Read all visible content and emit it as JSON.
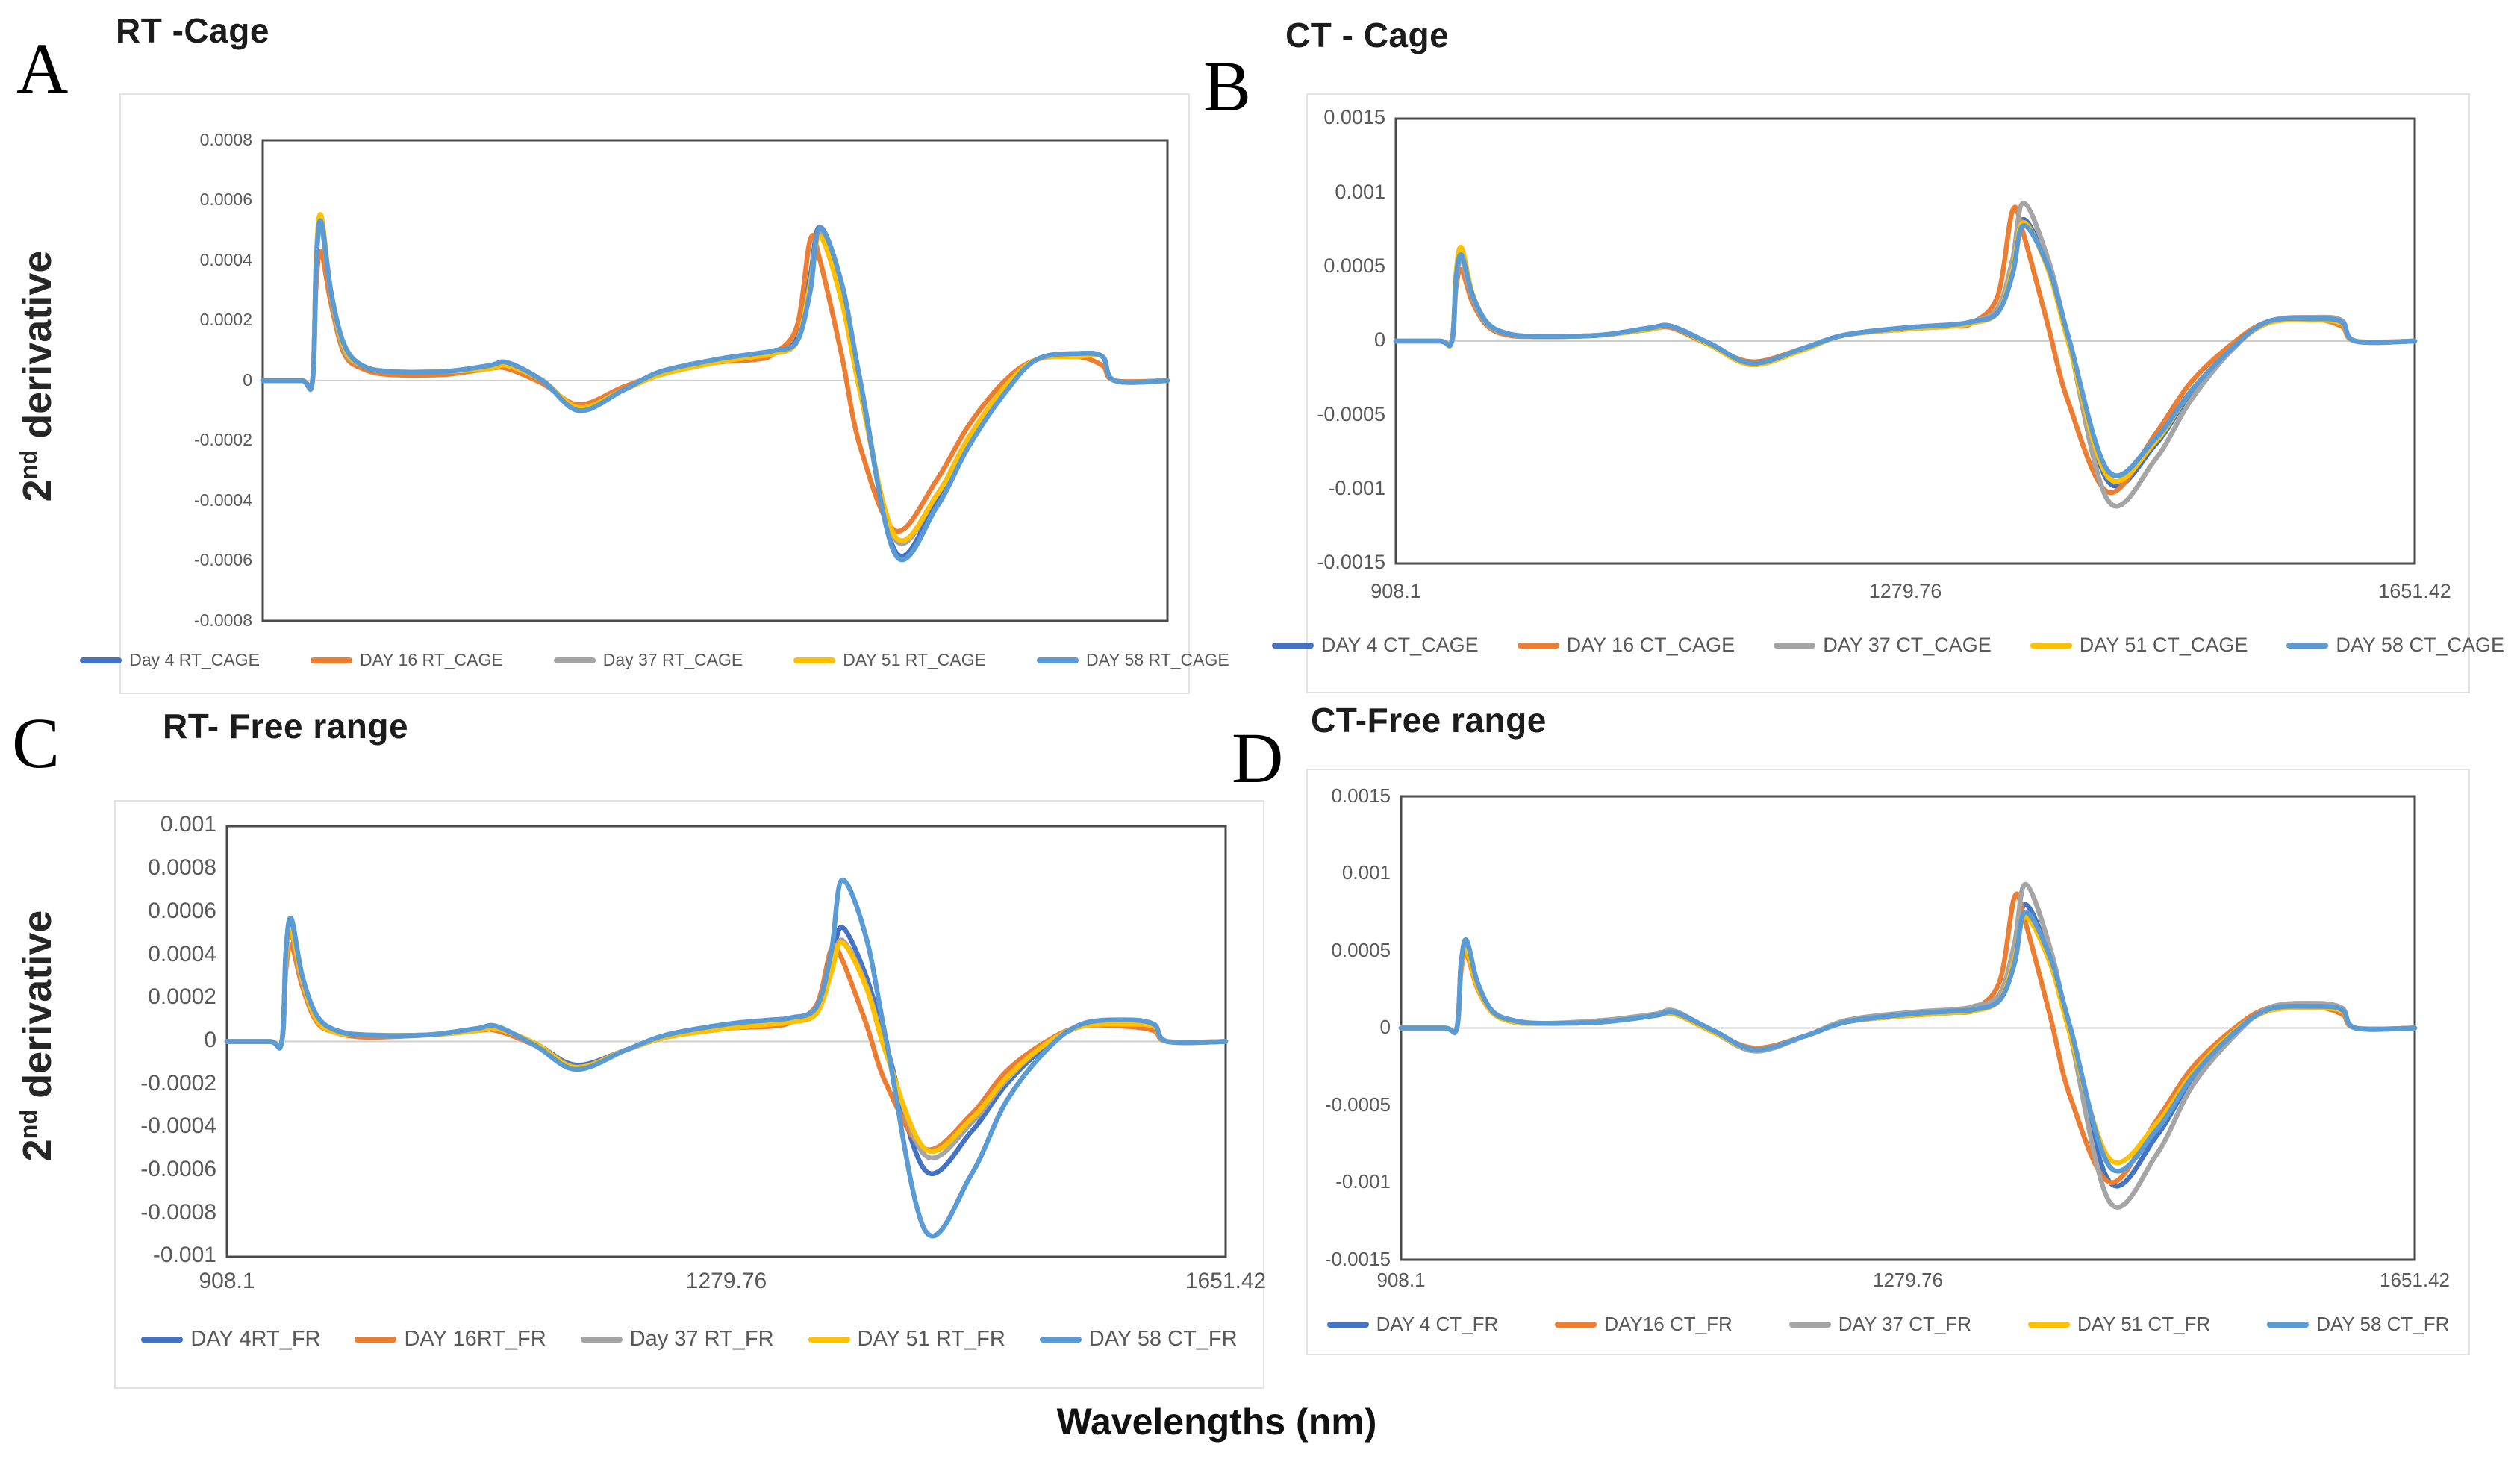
{
  "page": {
    "x_axis_title": "Wavelengths (nm)",
    "y_axis_title_base": "2",
    "y_axis_title_sup": "nd",
    "y_axis_title_rest": " derivative"
  },
  "colors": {
    "series_palette": [
      "#4472C4",
      "#ED7D31",
      "#A5A5A5",
      "#FFC000",
      "#5B9BD5"
    ],
    "axis_text": "#595959",
    "plot_border": "#4a4a4a",
    "zero_line": "#cfcfcf",
    "card_border": "#e2e2e2"
  },
  "wavelengths_nm": [
    908.1,
    940,
    949,
    952,
    956,
    964,
    975,
    990,
    1012,
    1057,
    1094,
    1109,
    1138,
    1168,
    1205,
    1235,
    1280,
    1313,
    1328,
    1347,
    1358,
    1366,
    1384,
    1399,
    1428,
    1462,
    1488,
    1518,
    1544,
    1577,
    1598,
    1608,
    1651.42
  ],
  "chart_data": [
    {
      "letter": "A",
      "title": "RT -Cage",
      "type": "line",
      "xlabel": "",
      "ylabel": "2nd derivative",
      "x_range": [
        908.1,
        1651.42
      ],
      "y_range": [
        -0.0008,
        0.0008
      ],
      "y_ticks": [
        "0.0008",
        "0.0006",
        "0.0004",
        "0.0002",
        "0",
        "-0.0002",
        "-0.0004",
        "-0.0006",
        "-0.0008"
      ],
      "x_tick_labels": [],
      "legend_position": "bottom",
      "series": [
        {
          "name": "Day 4 RT_CAGE",
          "color": "#4472C4",
          "y": [
            0,
            0,
            0,
            0.0004,
            0.00054,
            0.0003,
            0.00011,
            5e-05,
            3e-05,
            3e-05,
            4e-05,
            5e-05,
            0.0,
            -9e-05,
            -3e-05,
            2e-05,
            6e-05,
            8e-05,
            9e-05,
            0.00014,
            0.00035,
            0.00051,
            0.0003,
            0.0,
            -0.00057,
            -0.0004,
            -0.0002,
            -3e-05,
            7e-05,
            9e-05,
            8e-05,
            0,
            0
          ]
        },
        {
          "name": "DAY 16 RT_CAGE",
          "color": "#ED7D31",
          "y": [
            0,
            0,
            0,
            0.00032,
            0.00043,
            0.00026,
            9e-05,
            4e-05,
            2e-05,
            2e-05,
            4e-05,
            4e-05,
            -1e-05,
            -8e-05,
            -2e-05,
            2e-05,
            6e-05,
            7e-05,
            9e-05,
            0.00018,
            0.00047,
            0.0004,
            8e-05,
            -0.00022,
            -0.0005,
            -0.00033,
            -0.00015,
            0.0,
            7e-05,
            8e-05,
            5e-05,
            0,
            0
          ]
        },
        {
          "name": "Day 37 RT_CAGE",
          "color": "#A5A5A5",
          "y": [
            0,
            0,
            0,
            0.00038,
            0.00052,
            0.00029,
            0.0001,
            5e-05,
            3e-05,
            3e-05,
            4e-05,
            5e-05,
            0.0,
            -9e-05,
            -3e-05,
            2e-05,
            6e-05,
            8e-05,
            9e-05,
            0.00013,
            0.00033,
            0.00049,
            0.00027,
            -3e-05,
            -0.00053,
            -0.00038,
            -0.00019,
            -2e-05,
            7e-05,
            9e-05,
            8e-05,
            0,
            0
          ]
        },
        {
          "name": "DAY 51 RT_CAGE",
          "color": "#FFC000",
          "y": [
            0,
            0,
            0,
            0.00041,
            0.00055,
            0.0003,
            0.00011,
            5e-05,
            3e-05,
            3e-05,
            4e-05,
            5e-05,
            0.0,
            -9e-05,
            -3e-05,
            2e-05,
            6e-05,
            8e-05,
            9e-05,
            0.00013,
            0.00032,
            0.00048,
            0.00026,
            -4e-05,
            -0.00052,
            -0.00038,
            -0.00019,
            -2e-05,
            7e-05,
            8e-05,
            8e-05,
            0,
            0
          ]
        },
        {
          "name": "DAY 58 RT_CAGE",
          "color": "#5B9BD5",
          "y": [
            0,
            0,
            0,
            0.00039,
            0.00053,
            0.0003,
            0.00012,
            5e-05,
            3e-05,
            3e-05,
            5e-05,
            6e-05,
            0.0,
            -0.0001,
            -3e-05,
            3e-05,
            7e-05,
            9e-05,
            0.0001,
            0.00013,
            0.0003,
            0.00051,
            0.00032,
            0.0,
            -0.00058,
            -0.00042,
            -0.00022,
            -4e-05,
            7e-05,
            9e-05,
            8e-05,
            0,
            0
          ]
        }
      ]
    },
    {
      "letter": "B",
      "title": "CT - Cage",
      "type": "line",
      "xlabel": "",
      "ylabel": "",
      "x_range": [
        908.1,
        1651.42
      ],
      "y_range": [
        -0.0015,
        0.0015
      ],
      "y_ticks": [
        "0.0015",
        "0.001",
        "0.0005",
        "0",
        "-0.0005",
        "-0.001",
        "-0.0015"
      ],
      "x_tick_labels": [
        "908.1",
        "1279.76",
        "1651.42"
      ],
      "legend_position": "bottom",
      "series": [
        {
          "name": "DAY 4 CT_CAGE",
          "color": "#4472C4",
          "y": [
            0,
            0,
            0,
            0.00043,
            0.00058,
            0.0003,
            0.00012,
            5e-05,
            3e-05,
            4e-05,
            8e-05,
            0.0001,
            -2e-05,
            -0.00015,
            -6e-05,
            4e-05,
            8e-05,
            0.0001,
            0.00012,
            0.0002,
            0.0005,
            0.00082,
            0.0005,
            0.0,
            -0.00095,
            -0.0007,
            -0.00035,
            -5e-05,
            0.00012,
            0.00015,
            0.00013,
            0,
            0
          ]
        },
        {
          "name": "DAY 16 CT_CAGE",
          "color": "#ED7D31",
          "y": [
            0,
            0,
            0,
            0.00036,
            0.00048,
            0.00026,
            0.0001,
            4e-05,
            3e-05,
            4e-05,
            8e-05,
            9e-05,
            -3e-05,
            -0.00014,
            -5e-05,
            4e-05,
            8e-05,
            0.0001,
            0.00012,
            0.0003,
            0.00088,
            0.00072,
            0.0001,
            -0.00042,
            -0.00102,
            -0.00063,
            -0.00028,
            -2e-05,
            0.00013,
            0.00015,
            0.0001,
            0,
            0
          ]
        },
        {
          "name": "DAY 37 CT_CAGE",
          "color": "#A5A5A5",
          "y": [
            0,
            0,
            0,
            0.0004,
            0.00055,
            0.00029,
            0.00011,
            5e-05,
            3e-05,
            4e-05,
            8e-05,
            0.0001,
            -3e-05,
            -0.00016,
            -6e-05,
            4e-05,
            9e-05,
            0.00011,
            0.00013,
            0.00022,
            0.00055,
            0.00093,
            0.00055,
            0.0,
            -0.00108,
            -0.0008,
            -0.0004,
            -6e-05,
            0.00013,
            0.00016,
            0.00014,
            0,
            0
          ]
        },
        {
          "name": "DAY 51 CT_CAGE",
          "color": "#FFC000",
          "y": [
            0,
            0,
            0,
            0.00046,
            0.00063,
            0.00032,
            0.00012,
            5e-05,
            3e-05,
            4e-05,
            8e-05,
            0.0001,
            -3e-05,
            -0.00016,
            -6e-05,
            4e-05,
            8e-05,
            0.0001,
            0.00012,
            0.00019,
            0.00048,
            0.0008,
            0.00048,
            -2e-05,
            -0.00092,
            -0.00068,
            -0.00034,
            -5e-05,
            0.00012,
            0.00014,
            0.00012,
            0,
            0
          ]
        },
        {
          "name": "DAY 58 CT_CAGE",
          "color": "#5B9BD5",
          "y": [
            0,
            0,
            0,
            0.00042,
            0.00058,
            0.00031,
            0.00012,
            5e-05,
            3e-05,
            4e-05,
            9e-05,
            0.0001,
            -2e-05,
            -0.00015,
            -5e-05,
            4e-05,
            9e-05,
            0.00011,
            0.00013,
            0.00019,
            0.00045,
            0.00078,
            0.0005,
            2e-05,
            -0.00088,
            -0.00066,
            -0.00034,
            -5e-05,
            0.00013,
            0.00015,
            0.00013,
            0,
            0
          ]
        }
      ]
    },
    {
      "letter": "C",
      "title": "RT- Free range",
      "type": "line",
      "xlabel": "",
      "ylabel": "2nd derivative",
      "x_range": [
        908.1,
        1651.42
      ],
      "y_range": [
        -0.001,
        0.001
      ],
      "y_ticks": [
        "0.001",
        "0.0008",
        "0.0006",
        "0.0004",
        "0.0002",
        "0",
        "-0.0002",
        "-0.0004",
        "-0.0006",
        "-0.0008",
        "-0.001"
      ],
      "x_tick_labels": [
        "908.1",
        "1279.76",
        "1651.42"
      ],
      "legend_position": "bottom",
      "series": [
        {
          "name": "DAY 4RT_FR",
          "color": "#4472C4",
          "y": [
            0,
            0,
            0,
            0.00039,
            0.00053,
            0.00029,
            0.00011,
            5e-05,
            3e-05,
            3e-05,
            5e-05,
            6e-05,
            -1e-05,
            -0.00011,
            -4e-05,
            2e-05,
            6e-05,
            8e-05,
            9e-05,
            0.00014,
            0.00036,
            0.00053,
            0.0003,
            -2e-05,
            -0.0006,
            -0.00042,
            -0.0002,
            -2e-05,
            7e-05,
            8e-05,
            7e-05,
            0,
            0
          ]
        },
        {
          "name": "DAY 16RT_FR",
          "color": "#ED7D31",
          "y": [
            0,
            0,
            0,
            0.00033,
            0.00045,
            0.00026,
            9e-05,
            4e-05,
            2e-05,
            3e-05,
            5e-05,
            5e-05,
            -2e-05,
            -0.00012,
            -4e-05,
            2e-05,
            6e-05,
            7e-05,
            9e-05,
            0.00017,
            0.00043,
            0.00038,
            8e-05,
            -0.0002,
            -0.0005,
            -0.00034,
            -0.00014,
            0.0,
            7e-05,
            7e-05,
            5e-05,
            0,
            0
          ]
        },
        {
          "name": "Day 37 RT_FR",
          "color": "#A5A5A5",
          "y": [
            0,
            0,
            0,
            0.00037,
            0.0005,
            0.00028,
            0.0001,
            4e-05,
            3e-05,
            3e-05,
            5e-05,
            6e-05,
            -1e-05,
            -0.00012,
            -4e-05,
            2e-05,
            6e-05,
            8e-05,
            9e-05,
            0.00013,
            0.00033,
            0.00047,
            0.00026,
            -5e-05,
            -0.00053,
            -0.00038,
            -0.00018,
            -1e-05,
            7e-05,
            8e-05,
            7e-05,
            0,
            0
          ]
        },
        {
          "name": "DAY 51 RT_FR",
          "color": "#FFC000",
          "y": [
            0,
            0,
            0,
            0.00038,
            0.00052,
            0.00029,
            0.0001,
            4e-05,
            3e-05,
            3e-05,
            5e-05,
            6e-05,
            -1e-05,
            -0.00012,
            -4e-05,
            2e-05,
            6e-05,
            8e-05,
            9e-05,
            0.00013,
            0.00032,
            0.00046,
            0.00025,
            -6e-05,
            -0.0005,
            -0.00036,
            -0.00017,
            -1e-05,
            7e-05,
            8e-05,
            7e-05,
            0,
            0
          ]
        },
        {
          "name": "DAY 58 CT_FR",
          "color": "#5B9BD5",
          "y": [
            0,
            0,
            0,
            0.00042,
            0.00057,
            0.00031,
            0.00012,
            5e-05,
            3e-05,
            3e-05,
            6e-05,
            7e-05,
            -2e-05,
            -0.00013,
            -4e-05,
            3e-05,
            8e-05,
            0.0001,
            0.00011,
            0.00016,
            0.00042,
            0.00075,
            0.00048,
            0.0,
            -0.00088,
            -0.00062,
            -0.00028,
            -4e-05,
            8e-05,
            0.0001,
            8e-05,
            0,
            0
          ]
        }
      ]
    },
    {
      "letter": "D",
      "title": "CT-Free range",
      "type": "line",
      "xlabel": "",
      "ylabel": "",
      "x_range": [
        908.1,
        1651.42
      ],
      "y_range": [
        -0.0015,
        0.0015
      ],
      "y_ticks": [
        "0.0015",
        "0.001",
        "0.0005",
        "0",
        "-0.0005",
        "-0.001",
        "-0.0015"
      ],
      "x_tick_labels": [
        "908.1",
        "1279.76",
        "1651.42"
      ],
      "legend_position": "bottom",
      "series": [
        {
          "name": "DAY 4 CT_FR",
          "color": "#4472C4",
          "y": [
            0,
            0,
            0,
            0.00041,
            0.00055,
            0.00029,
            0.00011,
            4e-05,
            3e-05,
            4e-05,
            8e-05,
            9e-05,
            -3e-05,
            -0.00014,
            -5e-05,
            4e-05,
            8e-05,
            0.0001,
            0.00012,
            0.0002,
            0.0005,
            0.0008,
            0.00045,
            -5e-05,
            -0.001,
            -0.0007,
            -0.00033,
            -4e-05,
            0.00012,
            0.00014,
            0.00012,
            0,
            0
          ]
        },
        {
          "name": "DAY16 CT_FR",
          "color": "#ED7D31",
          "y": [
            0,
            0,
            0,
            0.00036,
            0.00048,
            0.00026,
            0.0001,
            4e-05,
            3e-05,
            4e-05,
            8e-05,
            9e-05,
            -3e-05,
            -0.00013,
            -5e-05,
            4e-05,
            8e-05,
            0.0001,
            0.00012,
            0.0003,
            0.00085,
            0.00068,
            8e-05,
            -0.00045,
            -0.001,
            -0.0006,
            -0.00026,
            -1e-05,
            0.00013,
            0.00014,
            9e-05,
            0,
            0
          ]
        },
        {
          "name": "DAY 37 CT_FR",
          "color": "#A5A5A5",
          "y": [
            0,
            0,
            0,
            0.00039,
            0.00052,
            0.00028,
            0.00011,
            5e-05,
            3e-05,
            5e-05,
            9e-05,
            0.00011,
            -3e-05,
            -0.00015,
            -5e-05,
            5e-05,
            0.0001,
            0.00012,
            0.00014,
            0.00022,
            0.00055,
            0.00093,
            0.00052,
            -5e-05,
            -0.00113,
            -0.00082,
            -0.00038,
            -6e-05,
            0.00013,
            0.00016,
            0.00013,
            0,
            0
          ]
        },
        {
          "name": "DAY 51 CT_FR",
          "color": "#FFC000",
          "y": [
            0,
            0,
            0,
            0.00038,
            0.0005,
            0.00027,
            0.0001,
            4e-05,
            3e-05,
            4e-05,
            8e-05,
            9e-05,
            -3e-05,
            -0.00014,
            -5e-05,
            4e-05,
            8e-05,
            0.0001,
            0.00011,
            0.00018,
            0.00045,
            0.00072,
            0.00042,
            -5e-05,
            -0.00085,
            -0.00062,
            -0.0003,
            -3e-05,
            0.00011,
            0.00013,
            0.00011,
            0,
            0
          ]
        },
        {
          "name": "DAY 58 CT_FR",
          "color": "#5B9BD5",
          "y": [
            0,
            0,
            0,
            0.0004,
            0.00057,
            0.0003,
            0.00011,
            5e-05,
            3e-05,
            4e-05,
            8e-05,
            0.0001,
            -2e-05,
            -0.00014,
            -5e-05,
            4e-05,
            9e-05,
            0.00011,
            0.00012,
            0.00018,
            0.00042,
            0.00075,
            0.00046,
            0.0,
            -0.0009,
            -0.00066,
            -0.00032,
            -4e-05,
            0.00012,
            0.00014,
            0.00012,
            0,
            0
          ]
        }
      ]
    }
  ]
}
